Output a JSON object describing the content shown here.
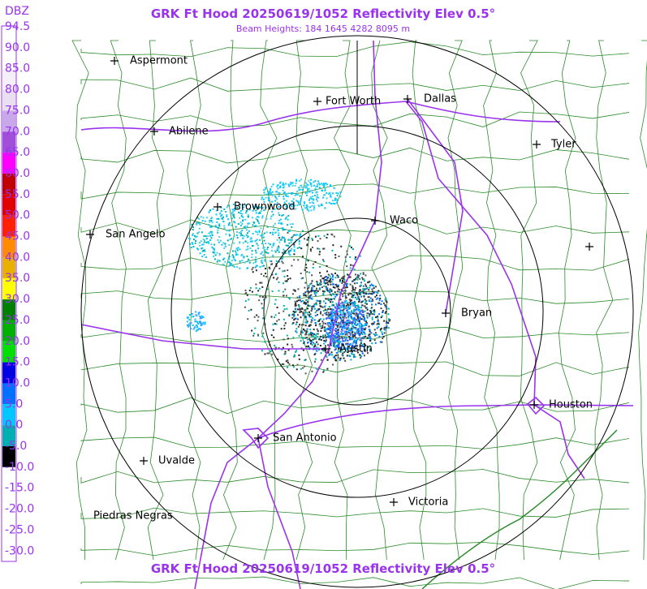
{
  "header": {
    "title": "GRK Ft Hood 20250619/1052 Reflectivity Elev 0.5°",
    "subtitle": "Beam Heights: 184 1645 4282 8095 m"
  },
  "legend": {
    "title": "DBZ",
    "labels": [
      "94.5",
      "90.0",
      "85.0",
      "80.0",
      "75.0",
      "70.0",
      "65.0",
      "60.0",
      "55.0",
      "50.0",
      "45.0",
      "40.0",
      "35.0",
      "30.0",
      "25.0",
      "20.0",
      "15.0",
      "10.0",
      "5.0",
      "0.0",
      "-5.0",
      "-10.0",
      "-15.0",
      "-20.0",
      "-25.0",
      "-30.0"
    ],
    "colors": [
      "#ffffff",
      "#ffffff",
      "#f4f0f8",
      "#e8e0f0",
      "#c8a8e8",
      "#a050d8",
      "#ff00ff",
      "#c00000",
      "#e00000",
      "#ff2000",
      "#ff8c00",
      "#e8b000",
      "#ffff00",
      "#008000",
      "#00b000",
      "#00e000",
      "#0000e0",
      "#0070ff",
      "#00c8ff",
      "#00b0b0",
      "#000000",
      "#ffffff",
      "#ffffff",
      "#ffffff",
      "#ffffff"
    ]
  },
  "cities": [
    "Aspermont",
    "Fort Worth",
    "Dallas",
    "Abilene",
    "Tyler",
    "Brownwood",
    "Waco",
    "San Angelo",
    "Bryan",
    "Austin",
    "Houston",
    "San Antonio",
    "Uvalde",
    "Victoria",
    "Piedras Negras"
  ]
}
